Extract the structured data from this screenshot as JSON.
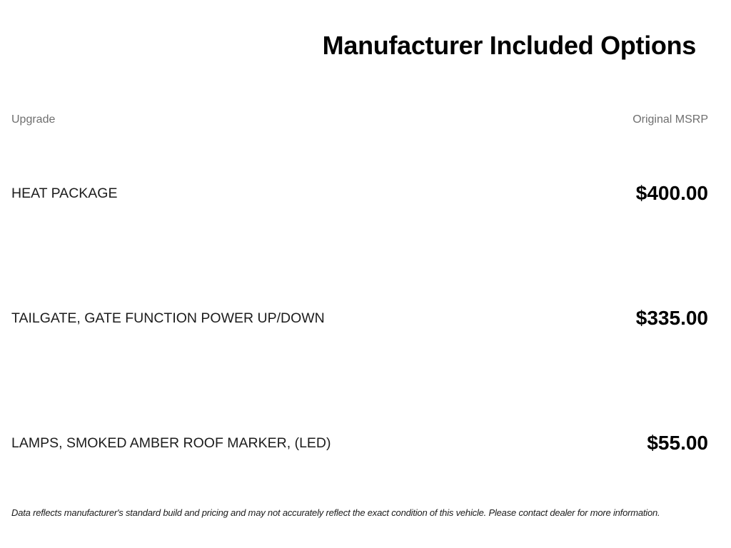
{
  "page": {
    "title": "Manufacturer Included Options"
  },
  "table": {
    "columns": {
      "upgrade": "Upgrade",
      "msrp": "Original MSRP"
    },
    "rows": [
      {
        "upgrade": "HEAT PACKAGE",
        "msrp": "$400.00"
      },
      {
        "upgrade": "TAILGATE, GATE FUNCTION POWER UP/DOWN",
        "msrp": "$335.00"
      },
      {
        "upgrade": "LAMPS, SMOKED AMBER ROOF MARKER, (LED)",
        "msrp": "$55.00"
      }
    ]
  },
  "disclaimer": "Data reflects manufacturer's standard build and pricing and may not accurately reflect the exact condition of this vehicle. Please contact dealer for more information.",
  "colors": {
    "background": "#ffffff",
    "heading": "#000000",
    "body_text": "#1c1c1c",
    "muted_header": "#6f6f6f"
  }
}
